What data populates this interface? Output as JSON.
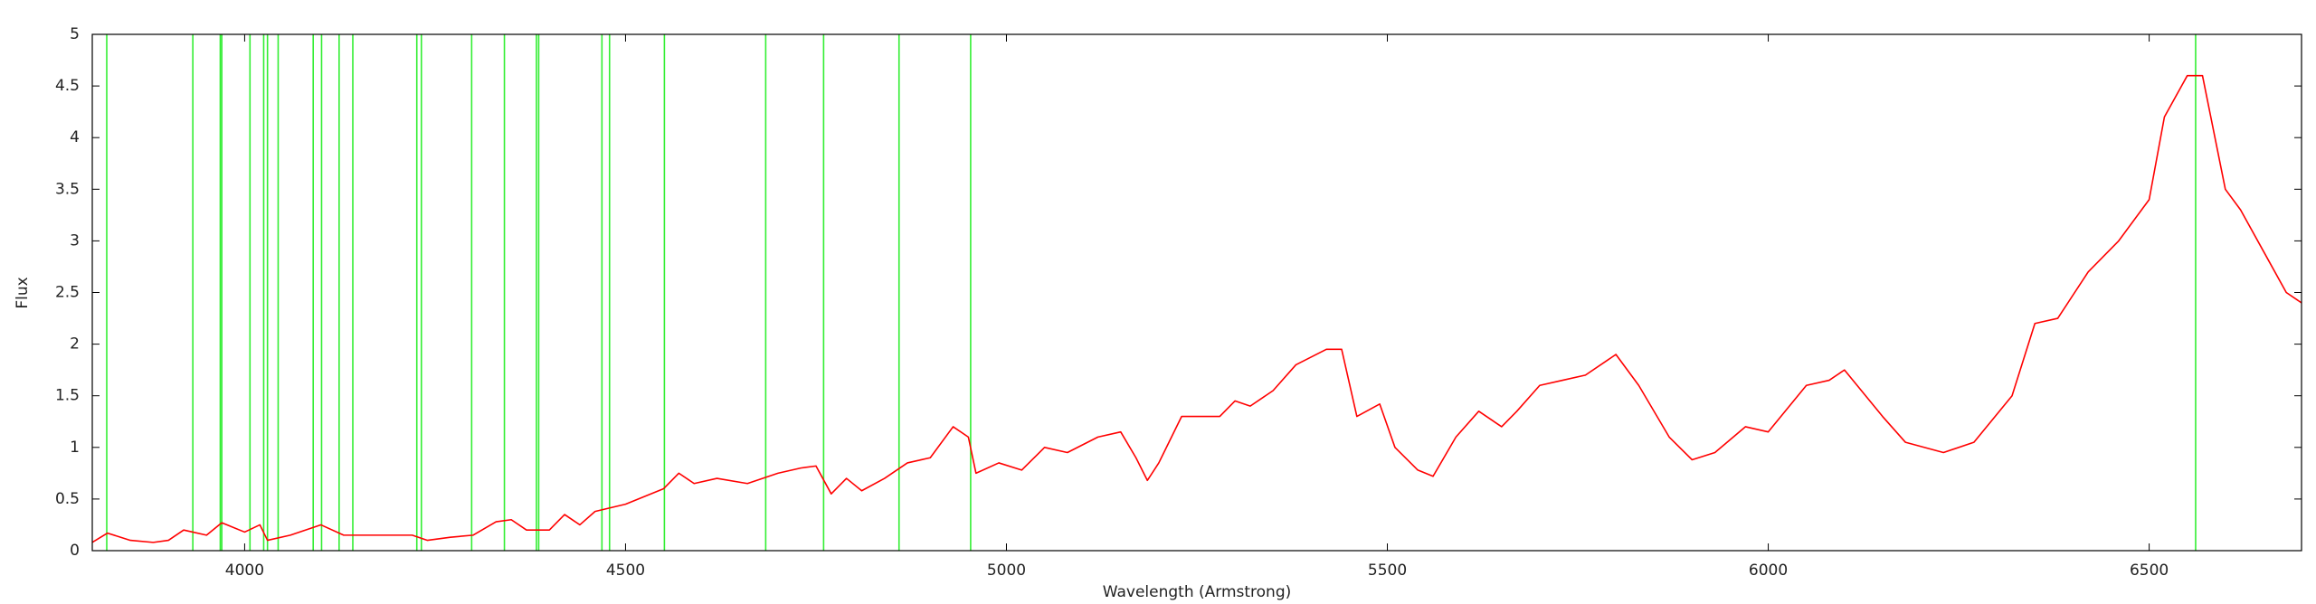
{
  "chart_data": {
    "type": "line",
    "xlabel": "Wavelength (Armstrong)",
    "ylabel": "Flux",
    "xlim": [
      3800,
      6700
    ],
    "xticks": [
      4000,
      4500,
      5000,
      5500,
      6000,
      6500
    ],
    "ylim": [
      0,
      5
    ],
    "yticks": [
      0,
      0.5,
      1,
      1.5,
      2,
      2.5,
      3,
      3.5,
      4,
      4.5,
      5
    ],
    "line_color": "#33ee33",
    "lines": [
      3819,
      3932,
      3968,
      3970,
      4007,
      4025,
      4030,
      4044,
      4090,
      4101,
      4124,
      4142,
      4226,
      4232,
      4298,
      4341,
      4383,
      4386,
      4469,
      4479,
      4551,
      4684,
      4760,
      4859,
      4953,
      6561
    ],
    "series": [
      {
        "color": "#ff0000",
        "x": [
          3800,
          3820,
          3850,
          3880,
          3900,
          3920,
          3950,
          3970,
          4000,
          4020,
          4030,
          4060,
          4100,
          4130,
          4150,
          4200,
          4220,
          4240,
          4270,
          4300,
          4330,
          4350,
          4370,
          4400,
          4420,
          4440,
          4460,
          4500,
          4550,
          4570,
          4590,
          4620,
          4660,
          4700,
          4730,
          4750,
          4770,
          4790,
          4810,
          4840,
          4870,
          4900,
          4930,
          4950,
          4960,
          4990,
          5020,
          5050,
          5080,
          5120,
          5150,
          5170,
          5185,
          5200,
          5230,
          5250,
          5280,
          5300,
          5320,
          5350,
          5380,
          5420,
          5440,
          5460,
          5490,
          5510,
          5540,
          5560,
          5590,
          5620,
          5650,
          5670,
          5700,
          5730,
          5760,
          5800,
          5830,
          5870,
          5900,
          5930,
          5970,
          6000,
          6050,
          6080,
          6100,
          6150,
          6180,
          6230,
          6270,
          6320,
          6350,
          6380,
          6420,
          6460,
          6500,
          6520,
          6550,
          6570,
          6600,
          6620,
          6650,
          6680,
          6700
        ],
        "values": [
          0.08,
          0.17,
          0.1,
          0.08,
          0.1,
          0.2,
          0.15,
          0.27,
          0.18,
          0.25,
          0.1,
          0.15,
          0.25,
          0.15,
          0.15,
          0.15,
          0.15,
          0.1,
          0.13,
          0.15,
          0.28,
          0.3,
          0.2,
          0.2,
          0.35,
          0.25,
          0.38,
          0.45,
          0.6,
          0.75,
          0.65,
          0.7,
          0.65,
          0.75,
          0.8,
          0.82,
          0.55,
          0.7,
          0.58,
          0.7,
          0.85,
          0.9,
          1.2,
          1.1,
          0.75,
          0.85,
          0.78,
          1.0,
          0.95,
          1.1,
          1.15,
          0.9,
          0.68,
          0.85,
          1.3,
          1.3,
          1.3,
          1.45,
          1.4,
          1.55,
          1.8,
          1.95,
          1.95,
          1.3,
          1.42,
          1.0,
          0.78,
          0.72,
          1.1,
          1.35,
          1.2,
          1.35,
          1.6,
          1.65,
          1.7,
          1.9,
          1.6,
          1.1,
          0.88,
          0.95,
          1.2,
          1.15,
          1.6,
          1.65,
          1.75,
          1.3,
          1.05,
          0.95,
          1.05,
          1.5,
          2.2,
          2.25,
          2.7,
          3.0,
          3.4,
          4.2,
          4.6,
          4.6,
          3.5,
          3.3,
          2.9,
          2.5,
          2.4
        ]
      }
    ]
  }
}
